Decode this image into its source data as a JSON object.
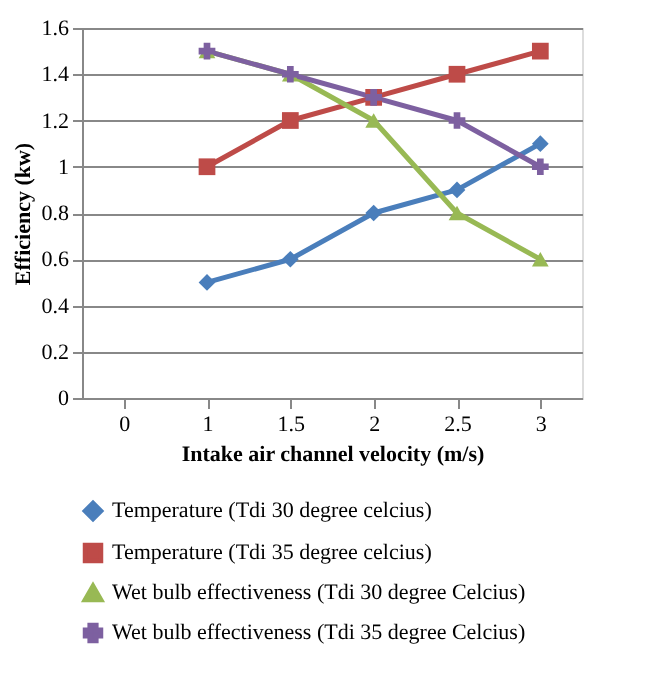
{
  "chart_data": {
    "type": "line",
    "xlabel": "Intake air channel velocity (m/s)",
    "ylabel": "Efficiency (kw)",
    "categories": [
      "0",
      "1",
      "1.5",
      "2",
      "2.5",
      "3"
    ],
    "ylim": [
      0,
      1.6
    ],
    "yticks": [
      0,
      0.2,
      0.4,
      0.6,
      0.8,
      1,
      1.2,
      1.4,
      1.6
    ],
    "grid": "y",
    "legend": "bottom",
    "line_style": "solid",
    "series": [
      {
        "name": "Temperature (Tdi 30 degree celcius)",
        "color": "#4a7ebb",
        "marker": "diamond",
        "values": [
          null,
          0.5,
          0.6,
          0.8,
          0.9,
          1.1
        ]
      },
      {
        "name": "Temperature (Tdi 35 degree celcius)",
        "color": "#be4b48",
        "marker": "square",
        "values": [
          null,
          1.0,
          1.2,
          1.3,
          1.4,
          1.5
        ]
      },
      {
        "name": "Wet bulb effectiveness (Tdi 30 degree Celcius)",
        "color": "#98b954",
        "marker": "triangle",
        "values": [
          null,
          1.5,
          1.4,
          1.2,
          0.8,
          0.6
        ]
      },
      {
        "name": "Wet bulb effectiveness (Tdi 35 degree Celcius)",
        "color": "#7d60a0",
        "marker": "cross",
        "values": [
          null,
          1.5,
          1.4,
          1.3,
          1.2,
          1.0
        ]
      }
    ]
  }
}
